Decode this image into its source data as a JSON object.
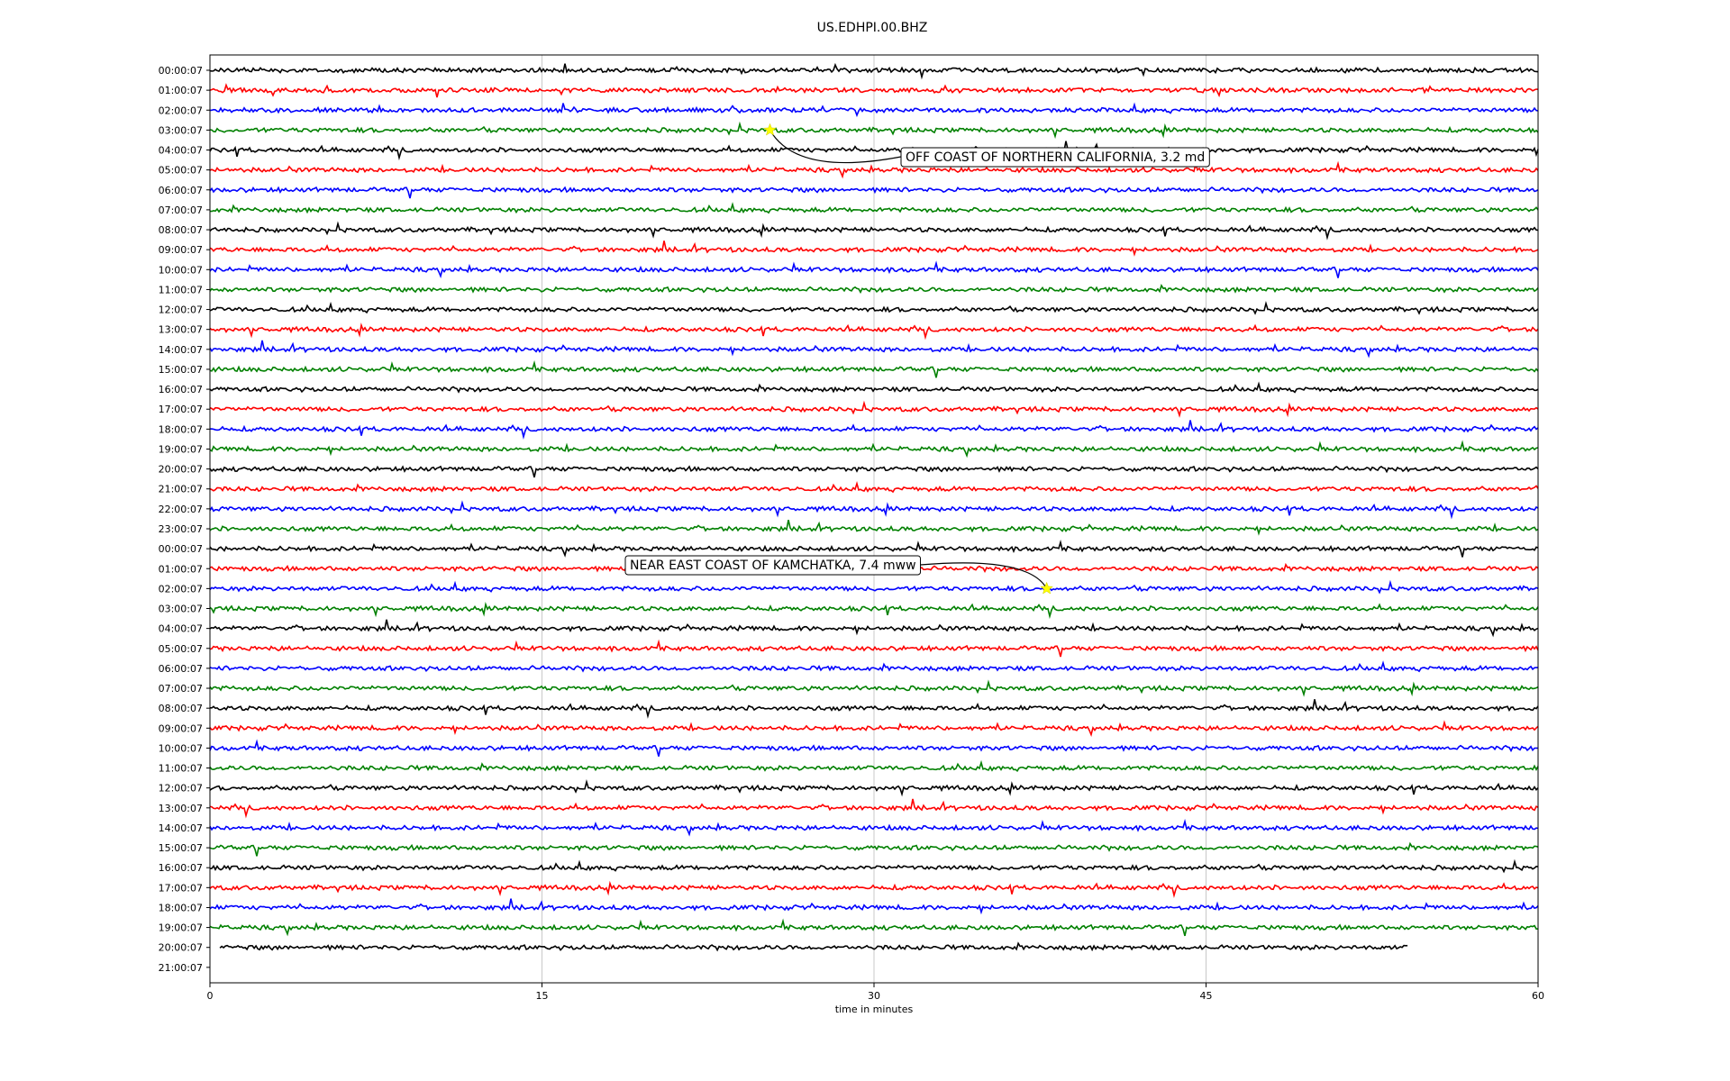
{
  "chart_data": {
    "type": "line",
    "title": "US.EDHPI.00.BHZ",
    "xlabel": "time in minutes",
    "ylabel": "",
    "xlim": [
      0,
      60
    ],
    "x_ticks": [
      "0",
      "15",
      "30",
      "45",
      "60"
    ],
    "x_tick_values": [
      0,
      15,
      30,
      45,
      60
    ],
    "grid": "vertical",
    "trace_colors": [
      "#000000",
      "#ff0000",
      "#0000ff",
      "#008000"
    ],
    "row_labels": [
      "00:00:07",
      "01:00:07",
      "02:00:07",
      "03:00:07",
      "04:00:07",
      "05:00:07",
      "06:00:07",
      "07:00:07",
      "08:00:07",
      "09:00:07",
      "10:00:07",
      "11:00:07",
      "12:00:07",
      "13:00:07",
      "14:00:07",
      "15:00:07",
      "16:00:07",
      "17:00:07",
      "18:00:07",
      "19:00:07",
      "20:00:07",
      "21:00:07",
      "22:00:07",
      "23:00:07",
      "00:00:07",
      "01:00:07",
      "02:00:07",
      "03:00:07",
      "04:00:07",
      "05:00:07",
      "06:00:07",
      "07:00:07",
      "08:00:07",
      "09:00:07",
      "10:00:07",
      "11:00:07",
      "12:00:07",
      "13:00:07",
      "14:00:07",
      "15:00:07",
      "16:00:07",
      "17:00:07",
      "18:00:07",
      "19:00:07",
      "20:00:07",
      "21:00:07"
    ],
    "last_trace_end_minute": 54.1,
    "events": [
      {
        "label": "OFF COAST OF NORTHERN CALIFORNIA, 3.2 md",
        "row": 3,
        "minute": 25.3,
        "marker_color": "#ffff00"
      },
      {
        "label": "NEAR EAST COAST OF KAMCHATKA, 7.4 mww",
        "row": 26,
        "minute": 37.8,
        "marker_color": "#ffff00"
      }
    ]
  }
}
